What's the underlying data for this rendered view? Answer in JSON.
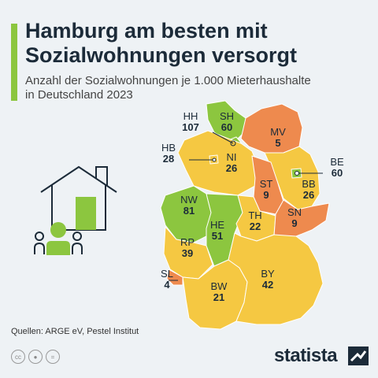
{
  "header": {
    "title_line1": "Hamburg am besten mit",
    "title_line2": "Sozialwohnungen versorgt",
    "subtitle_line1": "Anzahl der Sozialwohnungen je 1.000 Mieterhaushalte",
    "subtitle_line2": "in Deutschland 2023"
  },
  "colors": {
    "high": "#8cc63f",
    "medium": "#f5c842",
    "low": "#ee8a4e",
    "accent": "#8cc63f",
    "text": "#1c2b39"
  },
  "states": [
    {
      "code": "SH",
      "value": "60",
      "category": "high"
    },
    {
      "code": "HH",
      "value": "107",
      "category": "high"
    },
    {
      "code": "MV",
      "value": "5",
      "category": "low"
    },
    {
      "code": "HB",
      "value": "28",
      "category": "medium"
    },
    {
      "code": "NI",
      "value": "26",
      "category": "medium"
    },
    {
      "code": "BE",
      "value": "60",
      "category": "high"
    },
    {
      "code": "BB",
      "value": "26",
      "category": "medium"
    },
    {
      "code": "ST",
      "value": "9",
      "category": "low"
    },
    {
      "code": "NW",
      "value": "81",
      "category": "high"
    },
    {
      "code": "HE",
      "value": "51",
      "category": "high"
    },
    {
      "code": "TH",
      "value": "22",
      "category": "medium"
    },
    {
      "code": "SN",
      "value": "9",
      "category": "low"
    },
    {
      "code": "RP",
      "value": "39",
      "category": "medium"
    },
    {
      "code": "SL",
      "value": "4",
      "category": "low"
    },
    {
      "code": "BW",
      "value": "21",
      "category": "medium"
    },
    {
      "code": "BY",
      "value": "42",
      "category": "medium"
    }
  ],
  "footer": {
    "source": "Quellen: ARGE eV, Pestel Institut",
    "brand": "statista",
    "cc_icons": [
      "cc-icon",
      "person-icon",
      "equals-icon"
    ]
  }
}
